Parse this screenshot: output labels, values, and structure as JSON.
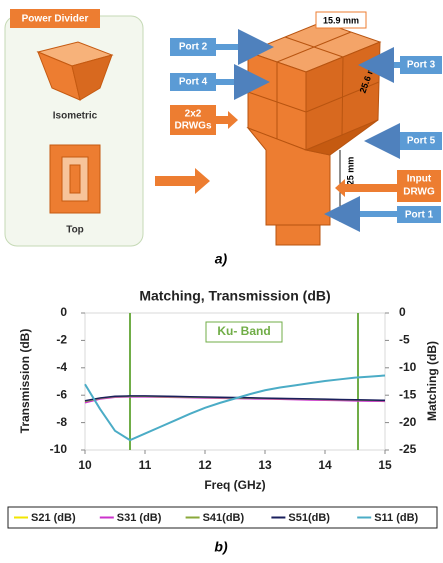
{
  "diagram": {
    "panel_title": "Power Divider",
    "isometric": "Isometric",
    "top": "Top",
    "width": "15.9 mm",
    "depth": "25.6 mm",
    "height": "25 mm",
    "ports": [
      "Port 2",
      "Port 4",
      "Port 3",
      "Port 5",
      "Port 1"
    ],
    "drwgs": [
      "2x2",
      "DRWGs"
    ],
    "input": [
      "Input",
      "DRWG"
    ]
  },
  "captions": [
    "a)",
    "b)"
  ],
  "chart_data": {
    "type": "line",
    "title": "Matching, Transmission (dB)",
    "x_label": "Freq (GHz)",
    "y_label": "Transmission (dB)",
    "y2_label": "Matching (dB)",
    "x": [
      10,
      10.25,
      10.5,
      10.75,
      11,
      11.25,
      11.5,
      11.75,
      12,
      12.25,
      12.5,
      12.75,
      13,
      13.25,
      13.5,
      13.75,
      14,
      14.25,
      14.5,
      14.75,
      15
    ],
    "series": [
      {
        "name": "S21 (dB)",
        "color": "#f2e600",
        "values": [
          -6.5,
          -6.25,
          -6.12,
          -6.1,
          -6.1,
          -6.12,
          -6.14,
          -6.16,
          -6.18,
          -6.2,
          -6.22,
          -6.24,
          -6.26,
          -6.28,
          -6.3,
          -6.32,
          -6.34,
          -6.36,
          -6.38,
          -6.4,
          -6.42
        ]
      },
      {
        "name": "S31 (dB)",
        "color": "#cc33cc",
        "values": [
          -6.55,
          -6.28,
          -6.15,
          -6.12,
          -6.12,
          -6.14,
          -6.16,
          -6.18,
          -6.2,
          -6.22,
          -6.24,
          -6.26,
          -6.28,
          -6.3,
          -6.32,
          -6.35,
          -6.37,
          -6.39,
          -6.41,
          -6.43,
          -6.45
        ]
      },
      {
        "name": "S41(dB)",
        "color": "#8aa83a",
        "values": [
          -6.45,
          -6.22,
          -6.1,
          -6.08,
          -6.08,
          -6.1,
          -6.12,
          -6.14,
          -6.16,
          -6.18,
          -6.2,
          -6.21,
          -6.23,
          -6.25,
          -6.27,
          -6.29,
          -6.31,
          -6.33,
          -6.35,
          -6.37,
          -6.39
        ]
      },
      {
        "name": "S51(dB)",
        "color": "#1a1f5c",
        "values": [
          -6.4,
          -6.2,
          -6.08,
          -6.05,
          -6.05,
          -6.07,
          -6.09,
          -6.11,
          -6.13,
          -6.15,
          -6.17,
          -6.19,
          -6.21,
          -6.23,
          -6.25,
          -6.27,
          -6.29,
          -6.31,
          -6.33,
          -6.35,
          -6.37
        ]
      },
      {
        "name": "S11 (dB)",
        "color": "#4bacc6",
        "axis": "y2",
        "values": [
          -13,
          -17.5,
          -21.5,
          -23.2,
          -22,
          -20.8,
          -19.6,
          -18.4,
          -17.3,
          -16.4,
          -15.6,
          -14.8,
          -14.1,
          -13.6,
          -13.2,
          -12.8,
          -12.4,
          -12.1,
          -11.8,
          -11.6,
          -11.4
        ]
      }
    ],
    "xlim": [
      10,
      15
    ],
    "xticks": [
      10,
      11,
      12,
      13,
      14,
      15
    ],
    "ylim": [
      -10,
      0
    ],
    "yticks": [
      0,
      -2,
      -4,
      -6,
      -8,
      -10
    ],
    "y2lim": [
      -25,
      0
    ],
    "y2ticks": [
      0,
      -5,
      -10,
      -15,
      -20,
      -25
    ],
    "ku_band": {
      "label": "Ku- Band",
      "color": "#70ad47",
      "x": [
        10.75,
        14.55
      ]
    },
    "legend": "bottom"
  }
}
